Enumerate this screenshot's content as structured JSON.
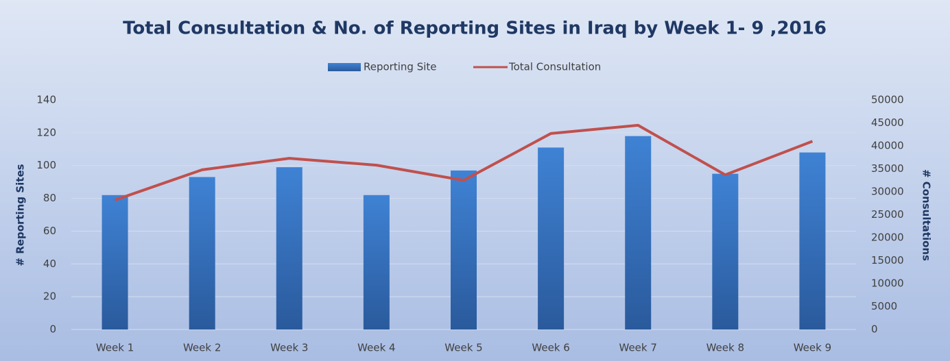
{
  "chart_data": {
    "type": "bar",
    "title": "Total Consultation & No. of Reporting Sites in Iraq by Week 1- 9 ,2016",
    "categories": [
      "Week 1",
      "Week 2",
      "Week 3",
      "Week 4",
      "Week 5",
      "Week 6",
      "Week 7",
      "Week 8",
      "Week 9"
    ],
    "series": [
      {
        "name": "Reporting Site",
        "type": "bar",
        "color": "#3a78c8",
        "values": [
          82,
          93,
          99,
          82,
          97,
          111,
          118,
          95,
          108
        ]
      },
      {
        "name": "Total Consultation",
        "type": "line",
        "axis": "y2",
        "color": "#c0504d",
        "values": [
          28200,
          34800,
          37300,
          35800,
          32500,
          42700,
          44500,
          33700,
          41000
        ]
      }
    ],
    "ylabel": "# Reporting Sites",
    "y2label": "# Consultations",
    "ylim": [
      0,
      140
    ],
    "yticks": [
      0,
      20,
      40,
      60,
      80,
      100,
      120,
      140
    ],
    "y2lim": [
      0,
      50000
    ],
    "y2ticks": [
      0,
      5000,
      10000,
      15000,
      20000,
      25000,
      30000,
      35000,
      40000,
      45000,
      50000
    ],
    "grid": true,
    "legend": "top"
  }
}
